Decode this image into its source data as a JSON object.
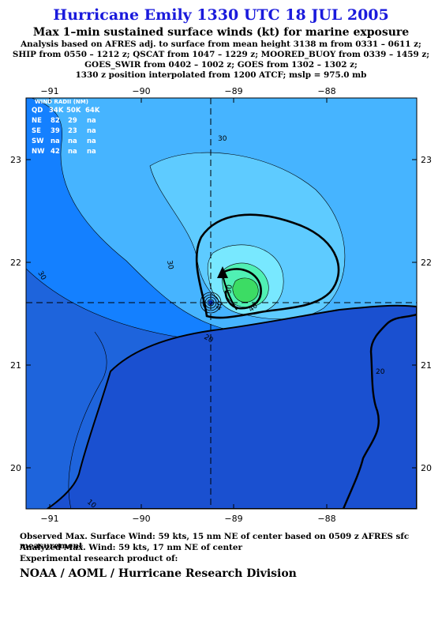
{
  "header": {
    "title": "Hurricane Emily 1330 UTC 18 JUL 2005",
    "subtitle": "Max 1–min sustained surface winds (kt) for marine exposure",
    "notes": [
      "Analysis based on  AFRES adj. to surface from mean height 3138 m from 0331 – 0611 z;",
      "SHIP from 0550 – 1212 z;  QSCAT from 1047 – 1229 z;  MOORED_BUOY from 0339 – 1459 z;",
      "GOES_SWIR from 0402 – 1002 z;  GOES from 1302 – 1302 z;",
      "1330 z position interpolated from 1200 ATCF; mslp = 975.0 mb"
    ]
  },
  "map": {
    "lon_ticks": [
      "−91",
      "−90",
      "−89",
      "−88"
    ],
    "lat_ticks": [
      "23",
      "22",
      "21",
      "20"
    ],
    "lon_values": [
      -91,
      -90,
      -89,
      -88
    ],
    "lat_values": [
      23,
      22,
      21,
      20
    ],
    "storm_center": {
      "lon": -89.15,
      "lat": 21.6
    },
    "contour_labels": [
      "30",
      "30",
      "30",
      "20",
      "40",
      "50",
      "40",
      "20",
      "10"
    ],
    "colors": {
      "outer": "#1e64dc",
      "sea_20": "#1480ff",
      "sea_30": "#46b4ff",
      "core_50": "#78e8ff",
      "core_60": "#50f0b4",
      "core_70": "#3cdc64",
      "land": "#1a50d0"
    }
  },
  "wind_radii": {
    "title": "WIND RADII (NM)",
    "header": [
      "QD",
      "34K",
      "50K",
      "64K"
    ],
    "rows": [
      [
        "NE",
        "82",
        "29",
        "na"
      ],
      [
        "SE",
        "39",
        "23",
        "na"
      ],
      [
        "SW",
        "na",
        "na",
        "na"
      ],
      [
        "NW",
        "42",
        "na",
        "na"
      ]
    ]
  },
  "footer": {
    "observed": "Observed Max. Surface Wind: 59 kts, 15 nm NE of center based on 0509 z AFRES sfc measurement",
    "analyzed": "Analyzed Max. Wind: 59 kts, 17 nm NE of center",
    "product": "Experimental research product of:",
    "agency": "NOAA / AOML / Hurricane Research Division"
  }
}
